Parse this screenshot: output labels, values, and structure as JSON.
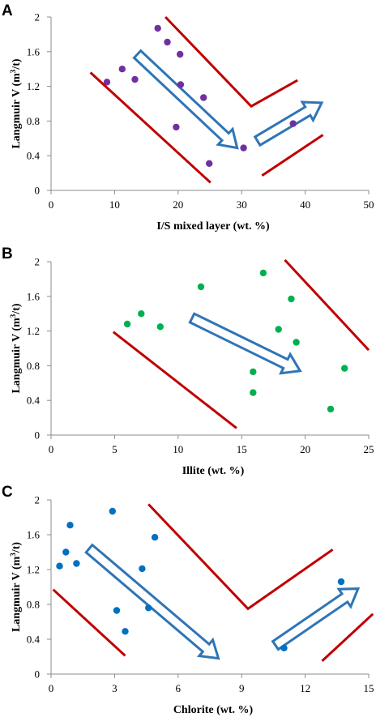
{
  "chart_data": [
    {
      "type": "scatter",
      "panel_label": "A",
      "xlabel": "I/S mixed layer (wt. %)",
      "ylabel": "Langmuir  V (m³/t)",
      "ylabel_parts": [
        "Langmuir  V (m",
        "3",
        "/t)"
      ],
      "xlim": [
        0,
        50
      ],
      "ylim": [
        0,
        2
      ],
      "xticks": [
        0,
        10,
        20,
        30,
        40,
        50
      ],
      "yticks": [
        0,
        0.4,
        0.8,
        1.2,
        1.6,
        2
      ],
      "ytick_labels": [
        "0",
        "0.4",
        "0.8",
        "1.2",
        "1.6",
        "2"
      ],
      "grid": false,
      "marker_color": "#7030a0",
      "points": [
        [
          8.8,
          1.25
        ],
        [
          11.2,
          1.4
        ],
        [
          13.2,
          1.28
        ],
        [
          16.8,
          1.87
        ],
        [
          18.3,
          1.71
        ],
        [
          20.3,
          1.57
        ],
        [
          20.4,
          1.22
        ],
        [
          19.7,
          0.73
        ],
        [
          24,
          1.07
        ],
        [
          24.9,
          0.31
        ],
        [
          30.3,
          0.49
        ],
        [
          38.1,
          0.77
        ]
      ],
      "trend_lines": [
        [
          [
            6.2,
            1.36
          ],
          [
            25.1,
            0.09
          ]
        ],
        [
          [
            18,
            2.0
          ],
          [
            31.5,
            0.97
          ],
          [
            38.8,
            1.27
          ]
        ],
        [
          [
            33.2,
            0.17
          ],
          [
            42.8,
            0.64
          ]
        ]
      ],
      "arrows": [
        [
          [
            13.6,
            1.57
          ],
          [
            29.3,
            0.49
          ]
        ],
        [
          [
            32.5,
            0.57
          ],
          [
            42.6,
            1.01
          ]
        ]
      ],
      "trend_color": "#c00000",
      "arrow_color": "#2e75b6"
    },
    {
      "type": "scatter",
      "panel_label": "B",
      "xlabel": "Illite (wt. %)",
      "ylabel": "Langmuir  V (m³/t)",
      "ylabel_parts": [
        "Langmuir  V (m",
        "3",
        "/t)"
      ],
      "xlim": [
        0,
        25
      ],
      "ylim": [
        0,
        2
      ],
      "xticks": [
        0,
        5,
        10,
        15,
        20,
        25
      ],
      "yticks": [
        0,
        0.4,
        0.8,
        1.2,
        1.6,
        2
      ],
      "ytick_labels": [
        "0",
        "0.4",
        "0.8",
        "1.2",
        "1.6",
        "2"
      ],
      "grid": false,
      "marker_color": "#00b050",
      "points": [
        [
          6,
          1.28
        ],
        [
          7.1,
          1.4
        ],
        [
          8.6,
          1.25
        ],
        [
          11.8,
          1.71
        ],
        [
          16.7,
          1.87
        ],
        [
          18.9,
          1.57
        ],
        [
          17.9,
          1.22
        ],
        [
          19.3,
          1.07
        ],
        [
          15.9,
          0.73
        ],
        [
          15.9,
          0.49
        ],
        [
          23.1,
          0.77
        ],
        [
          22,
          0.3
        ]
      ],
      "trend_lines": [
        [
          [
            4.9,
            1.19
          ],
          [
            14.6,
            0.08
          ]
        ],
        [
          [
            18.4,
            2.02
          ],
          [
            25,
            0.98
          ]
        ]
      ],
      "arrows": [
        [
          [
            11.1,
            1.35
          ],
          [
            19.6,
            0.74
          ]
        ]
      ],
      "trend_color": "#c00000",
      "arrow_color": "#2e75b6"
    },
    {
      "type": "scatter",
      "panel_label": "C",
      "xlabel": "Chlorite  (wt. %)",
      "ylabel": "Langmuir  V (m³/t)",
      "ylabel_parts": [
        "Langmuir  V (m",
        "3",
        "/t)"
      ],
      "xlim": [
        0,
        15
      ],
      "ylim": [
        0,
        2
      ],
      "xticks": [
        0,
        3,
        6,
        9,
        12,
        15
      ],
      "yticks": [
        0,
        0.4,
        0.8,
        1.2,
        1.6,
        2
      ],
      "ytick_labels": [
        "0",
        "0.4",
        "0.8",
        "1.2",
        "1.6",
        "2"
      ],
      "grid": false,
      "marker_color": "#0070c0",
      "points": [
        [
          0.4,
          1.24
        ],
        [
          0.7,
          1.4
        ],
        [
          0.9,
          1.71
        ],
        [
          1.2,
          1.27
        ],
        [
          2.9,
          1.87
        ],
        [
          3.1,
          0.73
        ],
        [
          3.5,
          0.49
        ],
        [
          4.3,
          1.21
        ],
        [
          4.6,
          0.76
        ],
        [
          4.9,
          1.57
        ],
        [
          11,
          0.3
        ],
        [
          13.7,
          1.06
        ]
      ],
      "trend_lines": [
        [
          [
            0.1,
            0.97
          ],
          [
            3.5,
            0.21
          ]
        ],
        [
          [
            4.6,
            1.95
          ],
          [
            9.3,
            0.75
          ],
          [
            13.3,
            1.43
          ]
        ],
        [
          [
            12.8,
            0.15
          ],
          [
            15.2,
            0.69
          ]
        ]
      ],
      "arrows": [
        [
          [
            1.8,
            1.44
          ],
          [
            7.9,
            0.18
          ]
        ],
        [
          [
            10.6,
            0.33
          ],
          [
            14.5,
            0.98
          ]
        ]
      ],
      "trend_color": "#c00000",
      "arrow_color": "#2e75b6"
    }
  ]
}
